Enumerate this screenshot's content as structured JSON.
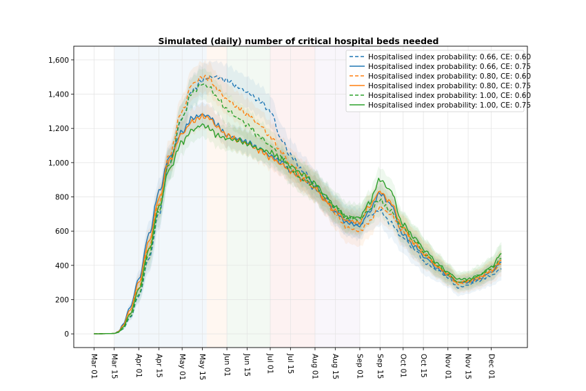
{
  "chart_data": {
    "type": "line",
    "title": "Simulated (daily) number of critical hospital beds needed",
    "xlabel": "",
    "ylabel": "",
    "x_tick_labels": [
      "Mar 01",
      "Mar 15",
      "Apr 01",
      "Apr 15",
      "May 01",
      "May 15",
      "Jun 01",
      "Jun 15",
      "Jul 01",
      "Jul 15",
      "Aug 01",
      "Aug 15",
      "Sep 01",
      "Sep 15",
      "Oct 01",
      "Oct 15",
      "Nov 01",
      "Nov 15",
      "Dec 01"
    ],
    "x_tick_days": [
      0,
      14,
      31,
      45,
      61,
      75,
      92,
      106,
      122,
      136,
      153,
      167,
      184,
      198,
      214,
      228,
      245,
      259,
      275
    ],
    "x_range_days": [
      -14,
      300
    ],
    "y_ticks": [
      0,
      200,
      400,
      600,
      800,
      1000,
      1200,
      1400,
      1600
    ],
    "y_tick_labels": [
      "0",
      "200",
      "400",
      "600",
      "800",
      "1,000",
      "1,200",
      "1,400",
      "1,600"
    ],
    "ylim": [
      -80,
      1680
    ],
    "grid": true,
    "legend_position": "top-right",
    "shaded_periods": [
      {
        "start_day": 14,
        "end_day": 78,
        "color": "#1f77b4"
      },
      {
        "start_day": 78,
        "end_day": 92,
        "color": "#ff7f0e"
      },
      {
        "start_day": 92,
        "end_day": 122,
        "color": "#2ca02c"
      },
      {
        "start_day": 122,
        "end_day": 153,
        "color": "#d62728"
      },
      {
        "start_day": 153,
        "end_day": 184,
        "color": "#9467bd"
      }
    ],
    "x_days": [
      0,
      14,
      17,
      20,
      25,
      31,
      38,
      45,
      52,
      61,
      68,
      75,
      80,
      85,
      92,
      100,
      106,
      115,
      122,
      130,
      136,
      145,
      153,
      160,
      167,
      175,
      184,
      190,
      198,
      205,
      214,
      222,
      230,
      238,
      245,
      252,
      259,
      266,
      275,
      282
    ],
    "series": [
      {
        "name": "Hospitalised index probability: 0.66, CE: 0.60",
        "color": "#1f77b4",
        "dash": true,
        "band": 90,
        "values": [
          0,
          2,
          10,
          28,
          95,
          220,
          440,
          700,
          1000,
          1260,
          1420,
          1480,
          1500,
          1500,
          1480,
          1440,
          1410,
          1360,
          1300,
          1130,
          1040,
          950,
          870,
          790,
          720,
          660,
          640,
          690,
          720,
          650,
          560,
          490,
          410,
          370,
          330,
          270,
          285,
          310,
          340,
          380
        ]
      },
      {
        "name": "Hospitalised index probability: 0.66, CE: 0.75",
        "color": "#1f77b4",
        "dash": false,
        "band": 70,
        "values": [
          0,
          2,
          15,
          55,
          155,
          320,
          580,
          830,
          1030,
          1180,
          1260,
          1280,
          1270,
          1220,
          1160,
          1140,
          1120,
          1080,
          1040,
          1000,
          950,
          900,
          850,
          780,
          710,
          650,
          630,
          710,
          820,
          760,
          580,
          510,
          440,
          380,
          340,
          300,
          300,
          320,
          360,
          420
        ]
      },
      {
        "name": "Hospitalised index probability: 0.80, CE: 0.60",
        "color": "#ff7f0e",
        "dash": true,
        "band": 90,
        "values": [
          0,
          2,
          12,
          40,
          120,
          270,
          500,
          760,
          1040,
          1300,
          1460,
          1500,
          1490,
          1430,
          1370,
          1320,
          1280,
          1220,
          1150,
          1060,
          990,
          920,
          860,
          780,
          700,
          620,
          600,
          650,
          740,
          700,
          600,
          520,
          450,
          390,
          340,
          290,
          300,
          320,
          360,
          410
        ]
      },
      {
        "name": "Hospitalised index probability: 0.80, CE: 0.75",
        "color": "#ff7f0e",
        "dash": false,
        "band": 70,
        "values": [
          0,
          2,
          14,
          48,
          140,
          300,
          540,
          790,
          1010,
          1170,
          1240,
          1270,
          1260,
          1210,
          1160,
          1130,
          1110,
          1070,
          1030,
          990,
          950,
          900,
          850,
          780,
          720,
          660,
          650,
          740,
          830,
          770,
          620,
          530,
          460,
          390,
          350,
          300,
          310,
          330,
          370,
          430
        ]
      },
      {
        "name": "Hospitalised index probability: 1.00, CE: 0.60",
        "color": "#2ca02c",
        "dash": true,
        "band": 90,
        "values": [
          0,
          2,
          9,
          30,
          100,
          230,
          460,
          720,
          990,
          1260,
          1410,
          1460,
          1440,
          1380,
          1310,
          1260,
          1220,
          1150,
          1100,
          1030,
          960,
          900,
          860,
          800,
          740,
          680,
          670,
          720,
          780,
          720,
          620,
          540,
          460,
          400,
          350,
          300,
          310,
          340,
          380,
          440
        ]
      },
      {
        "name": "Hospitalised index probability: 1.00, CE: 0.75",
        "color": "#2ca02c",
        "dash": false,
        "band": 70,
        "values": [
          0,
          2,
          11,
          38,
          115,
          260,
          490,
          740,
          960,
          1120,
          1190,
          1220,
          1200,
          1160,
          1140,
          1130,
          1110,
          1080,
          1060,
          1020,
          980,
          930,
          880,
          810,
          740,
          680,
          680,
          760,
          900,
          840,
          640,
          560,
          480,
          410,
          360,
          320,
          320,
          340,
          390,
          470
        ]
      }
    ]
  }
}
